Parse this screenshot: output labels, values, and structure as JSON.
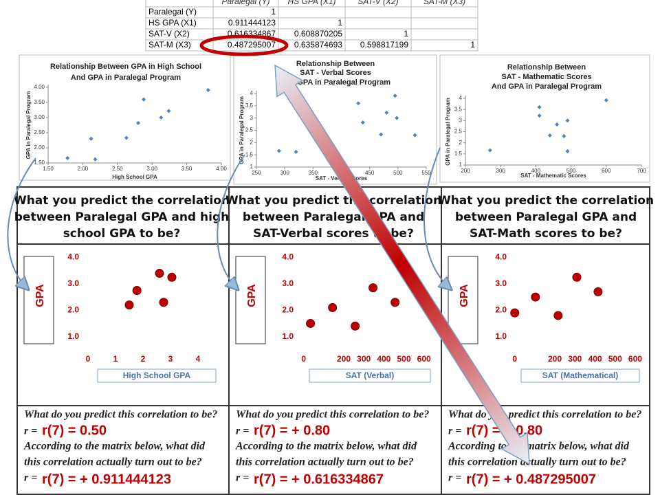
{
  "matrix": {
    "header": [
      "Paralegal (Y)",
      "HS GPA (X1)",
      "SAT-V (X2)",
      "SAT-M (X3)"
    ],
    "rows": [
      [
        "Paralegal (Y)",
        1
      ],
      [
        "HS GPA (X1)",
        0.911444123,
        1
      ],
      [
        "SAT-V (X2)",
        0.616334867,
        0.608870205,
        1
      ],
      [
        "SAT-M (X3)",
        0.487295007,
        0.635874693,
        0.598817199,
        1
      ]
    ]
  },
  "chart_data": [
    {
      "type": "scatter",
      "title": [
        "Relationship Between GPA in High School",
        "And GPA in Paralegal Program"
      ],
      "x_label": "High School GPA",
      "y_label": "GPA in Paralegal Program",
      "color": "#4f81bd",
      "grid": false,
      "x": [
        1.78,
        2.12,
        2.18,
        2.63,
        2.8,
        2.88,
        3.13,
        3.24,
        3.81
      ],
      "y": [
        1.66,
        2.3,
        1.62,
        2.33,
        2.82,
        3.6,
        3.0,
        3.22,
        3.91
      ],
      "xlim": [
        1.5,
        4.0
      ],
      "xticks": [
        {
          "value": 1.5,
          "label": "1.50"
        },
        {
          "value": 2,
          "label": "2.00"
        },
        {
          "value": 2.5,
          "label": "2.50"
        },
        {
          "value": 3,
          "label": "3.00"
        },
        {
          "value": 3.5,
          "label": "3.50"
        },
        {
          "value": 4,
          "label": "4.00"
        }
      ],
      "ylim": [
        1.5,
        4.0
      ],
      "yticks": [
        {
          "value": 1.5,
          "label": "1.50"
        },
        {
          "value": 2,
          "label": "2.00"
        },
        {
          "value": 2.5,
          "label": "2.50"
        },
        {
          "value": 3,
          "label": "3.00"
        },
        {
          "value": 3.5,
          "label": "3.50"
        },
        {
          "value": 4,
          "label": "4.00"
        }
      ]
    },
    {
      "type": "scatter",
      "title": [
        "Relationship Between",
        "SAT - Verbal Scores",
        "And GPA in Paralegal Program"
      ],
      "x_label": "SAT - Verbal Scores",
      "y_label": "GPA in Paralegal Program",
      "color": "#4f81bd",
      "grid": false,
      "x": [
        290,
        320,
        430,
        438,
        470,
        480,
        495,
        498,
        530
      ],
      "y": [
        1.66,
        1.62,
        3.6,
        2.82,
        2.33,
        3.22,
        3.91,
        3.0,
        2.3
      ],
      "xlim": [
        250,
        550
      ],
      "xticks": [
        250,
        300,
        350,
        400,
        450,
        500,
        550
      ],
      "ylim": [
        1,
        4
      ],
      "yticks": [
        1,
        1.5,
        2,
        2.5,
        3,
        3.5,
        4
      ]
    },
    {
      "type": "scatter",
      "title": [
        "Relationship Between",
        "SAT - Mathematic Scores",
        "And GPA in Paralegal Program"
      ],
      "x_label": "SAT - Mathematic Scores",
      "y_label": "GPA in Paralegal Program",
      "color": "#4f81bd",
      "grid": false,
      "x": [
        270,
        410,
        410,
        440,
        460,
        480,
        490,
        490,
        600
      ],
      "y": [
        1.66,
        3.6,
        3.22,
        2.33,
        2.82,
        2.3,
        3.0,
        1.62,
        3.91
      ],
      "xlim": [
        200,
        700
      ],
      "xticks": [
        200,
        300,
        400,
        500,
        600,
        700
      ],
      "ylim": [
        1,
        4
      ],
      "yticks": [
        1,
        1.5,
        2,
        2.5,
        3,
        3.5,
        4
      ]
    },
    {
      "type": "scatter",
      "x_label": "High School GPA",
      "y_label": "GPA",
      "color": "#c00000",
      "grid": false,
      "x": [
        1.5,
        1.78,
        2.6,
        3.05,
        2.75
      ],
      "y": [
        2.2,
        2.75,
        3.4,
        3.25,
        2.3
      ],
      "xlim": [
        -0.25,
        5
      ],
      "xticks": [
        0,
        1,
        2,
        3,
        4
      ],
      "ylim": [
        0.6,
        4.3
      ],
      "yticks": [
        {
          "value": 1,
          "label": "1.0"
        },
        {
          "value": 2,
          "label": "2.0"
        },
        {
          "value": 3,
          "label": "3.0"
        },
        {
          "value": 4,
          "label": "4.0"
        }
      ]
    },
    {
      "type": "scatter",
      "x_label": "SAT (Verbal)",
      "y_label": "GPA",
      "color": "#c00000",
      "grid": false,
      "x": [
        34,
        144,
        257,
        346,
        456
      ],
      "y": [
        1.5,
        2.1,
        1.4,
        2.85,
        2.3
      ],
      "xlim": [
        -40,
        680
      ],
      "xticks": [
        0,
        200,
        300,
        400,
        500,
        600
      ],
      "ylim": [
        0.6,
        4.3
      ],
      "yticks": [
        {
          "value": 1,
          "label": "1.0"
        },
        {
          "value": 2,
          "label": "2.0"
        },
        {
          "value": 3,
          "label": "3.0"
        },
        {
          "value": 4,
          "label": "4.0"
        }
      ]
    },
    {
      "type": "scatter",
      "x_label": "SAT (Mathematical)",
      "y_label": "GPA",
      "color": "#c00000",
      "grid": false,
      "x": [
        0,
        103,
        216,
        309,
        415
      ],
      "y": [
        1.9,
        2.5,
        1.8,
        3.25,
        2.7
      ],
      "xlim": [
        -30,
        655
      ],
      "xticks": [
        0,
        200,
        300,
        400,
        500,
        600
      ],
      "ylim": [
        0.6,
        4.3
      ],
      "yticks": [
        {
          "value": 1,
          "label": "1.0"
        },
        {
          "value": 2,
          "label": "2.0"
        },
        {
          "value": 3,
          "label": "3.0"
        },
        {
          "value": 4,
          "label": "4.0"
        }
      ]
    }
  ],
  "panels": [
    {
      "question": [
        "What you predict the correlation",
        "between Paralegal GPA and high",
        "school GPA to be?"
      ],
      "predict_prompt": "What do you predict this correlation to be?",
      "r_symbol": "r =",
      "predicted": "r(7) = 0.50",
      "matrix_prompt": [
        "According to the matrix below, what did",
        "this correlation actually turn out to be?"
      ],
      "actual": "r(7) = + 0.911444123"
    },
    {
      "question": [
        "What you predict the correlation",
        "between Paralegal GPA and",
        "SAT-Verbal scores to be?"
      ],
      "predict_prompt": "What do you predict this correlation to be?",
      "r_symbol": "r =",
      "predicted": "r(7) = + 0.80",
      "matrix_prompt": [
        "According to the matrix below, what did",
        "this correlation actually turn out to be?"
      ],
      "actual": "r(7) = + 0.616334867"
    },
    {
      "question": [
        "What you predict the correlation",
        "between Paralegal GPA and",
        "SAT-Math scores to be?"
      ],
      "predict_prompt": "What do you predict this correlation to be?",
      "r_symbol": "r =",
      "predicted": "r(7) = + 0.80",
      "matrix_prompt": [
        "According to the matrix below, what did",
        "this correlation actually turn out to be?"
      ],
      "actual": "r(7) = + 0.487295007"
    }
  ]
}
